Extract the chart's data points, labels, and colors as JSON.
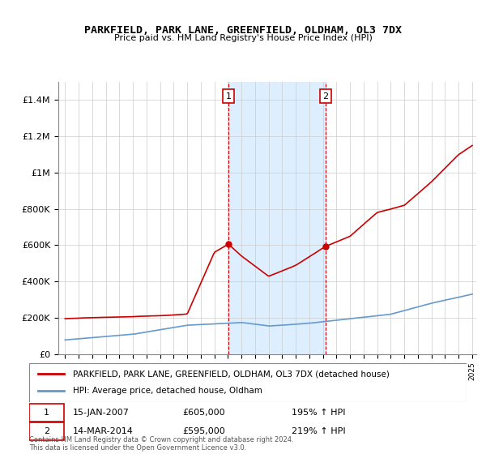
{
  "title": "PARKFIELD, PARK LANE, GREENFIELD, OLDHAM, OL3 7DX",
  "subtitle": "Price paid vs. HM Land Registry's House Price Index (HPI)",
  "legend_line1": "PARKFIELD, PARK LANE, GREENFIELD, OLDHAM, OL3 7DX (detached house)",
  "legend_line2": "HPI: Average price, detached house, Oldham",
  "annotation1_label": "1",
  "annotation1_date": "15-JAN-2007",
  "annotation1_price": "£605,000",
  "annotation1_hpi": "195% ↑ HPI",
  "annotation2_label": "2",
  "annotation2_date": "14-MAR-2014",
  "annotation2_price": "£595,000",
  "annotation2_hpi": "219% ↑ HPI",
  "footer": "Contains HM Land Registry data © Crown copyright and database right 2024.\nThis data is licensed under the Open Government Licence v3.0.",
  "hpi_color": "#6699cc",
  "price_color": "#cc0000",
  "annotation_color": "#cc0000",
  "shading_color": "#ddeeff",
  "grid_color": "#cccccc",
  "ylim": [
    0,
    1500000
  ],
  "yticks": [
    0,
    200000,
    400000,
    600000,
    800000,
    1000000,
    1200000,
    1400000
  ],
  "ytick_labels": [
    "£0",
    "£200K",
    "£400K",
    "£600K",
    "£800K",
    "£1M",
    "£1.2M",
    "£1.4M"
  ],
  "year_start": 1995,
  "year_end": 2025,
  "event1_year": 2007.04,
  "event2_year": 2014.2
}
